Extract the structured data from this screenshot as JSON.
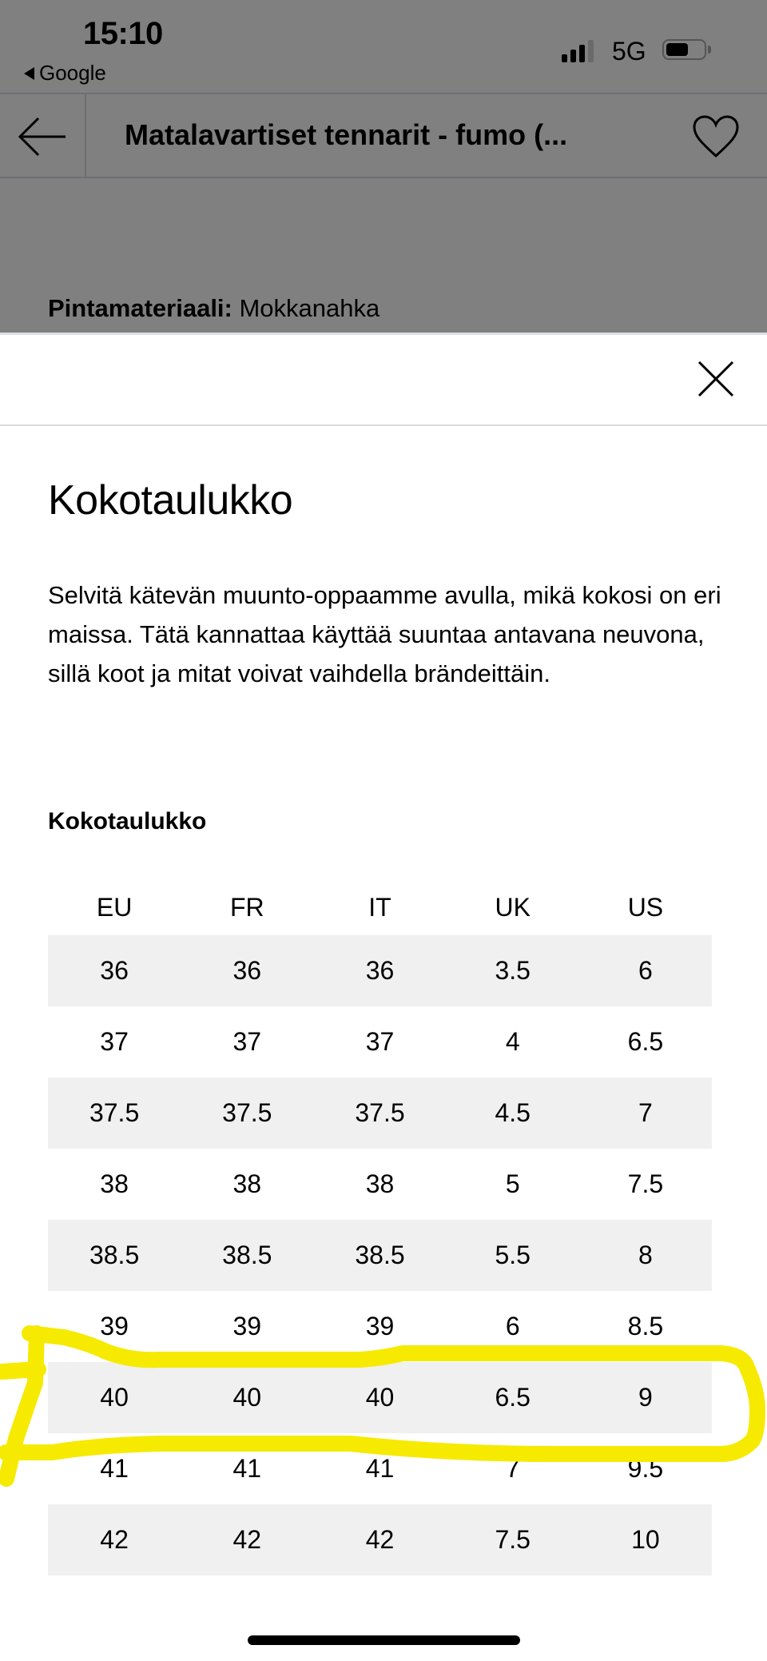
{
  "status_bar": {
    "time": "15:10",
    "back_app": "Google",
    "network": "5G",
    "battery_level": 0.6,
    "signal_bars": 3
  },
  "nav": {
    "title": "Matalavartiset tennarit - fumo (...",
    "back_icon": "arrow-left-icon",
    "favorite_icon": "heart-icon"
  },
  "background": {
    "material_label": "Pintamateriaali:",
    "material_value": " Mokkanahka"
  },
  "sheet": {
    "close_icon": "close-icon",
    "title": "Kokotaulukko",
    "description": "Selvitä kätevän muunto-oppaamme avulla, mikä kokosi on eri maissa. Tätä kannattaa käyttää suuntaa antavana neuvona, sillä koot ja mitat voivat vaihdella brändeittäin.",
    "table_title": "Kokotaulukko",
    "table": {
      "headers": [
        "EU",
        "FR",
        "IT",
        "UK",
        "US"
      ],
      "rows": [
        [
          "36",
          "36",
          "36",
          "3.5",
          "6"
        ],
        [
          "37",
          "37",
          "37",
          "4",
          "6.5"
        ],
        [
          "37.5",
          "37.5",
          "37.5",
          "4.5",
          "7"
        ],
        [
          "38",
          "38",
          "38",
          "5",
          "7.5"
        ],
        [
          "38.5",
          "38.5",
          "38.5",
          "5.5",
          "8"
        ],
        [
          "39",
          "39",
          "39",
          "6",
          "8.5"
        ],
        [
          "40",
          "40",
          "40",
          "6.5",
          "9"
        ],
        [
          "41",
          "41",
          "41",
          "7",
          "9.5"
        ],
        [
          "42",
          "42",
          "42",
          "7.5",
          "10"
        ]
      ],
      "highlighted_row": 6
    }
  },
  "colors": {
    "overlay": "#808080",
    "highlight": "#f5ea00",
    "row_shade": "#f0f0f0"
  }
}
